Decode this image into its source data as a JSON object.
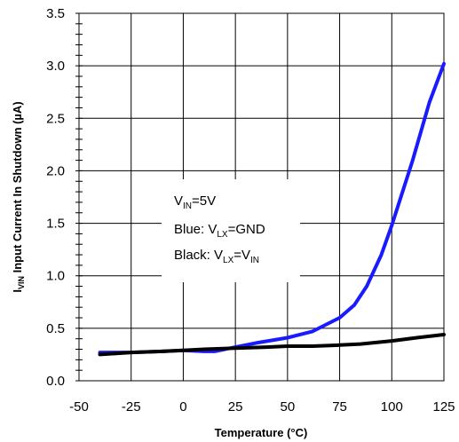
{
  "chart_data": {
    "type": "line",
    "xlabel": "Temperature (°C)",
    "ylabel": {
      "prefix": "I",
      "sub": "VIN",
      "rest": " Input Current In Shutdown (",
      "mu": "µ",
      "unit": "A)"
    },
    "xlim": [
      -50,
      125
    ],
    "ylim": [
      0,
      3.5
    ],
    "x_ticks": [
      -50,
      -25,
      0,
      25,
      50,
      75,
      100,
      125
    ],
    "x_tick_labels": [
      "-50",
      "-25",
      "0",
      "25",
      "50",
      "75",
      "100",
      "125"
    ],
    "y_ticks": [
      0,
      0.5,
      1.0,
      1.5,
      2.0,
      2.5,
      3.0,
      3.5
    ],
    "y_tick_labels": [
      "0.0",
      "0.5",
      "1.0",
      "1.5",
      "2.0",
      "2.5",
      "3.0",
      "3.5"
    ],
    "grid": true,
    "annotation": {
      "line1": {
        "main": "V",
        "sub": "IN",
        "rest": "=5V"
      },
      "line2": {
        "pre": "Blue: V",
        "sub": "LX",
        "rest": "=GND"
      },
      "line3": {
        "pre": "Black: V",
        "sub1": "LX",
        "mid": "=V",
        "sub2": "IN"
      }
    },
    "series": [
      {
        "color": "#1a1aff",
        "x": [
          -40,
          -25,
          -10,
          0,
          10,
          15,
          25,
          35,
          50,
          62,
          75,
          82,
          88,
          95,
          100,
          110,
          118,
          125
        ],
        "y": [
          0.27,
          0.27,
          0.28,
          0.29,
          0.28,
          0.28,
          0.32,
          0.36,
          0.41,
          0.47,
          0.6,
          0.72,
          0.9,
          1.2,
          1.48,
          2.1,
          2.65,
          3.02
        ]
      },
      {
        "color": "#000000",
        "x": [
          -40,
          -25,
          -10,
          0,
          10,
          25,
          40,
          50,
          62,
          75,
          85,
          100,
          112,
          125
        ],
        "y": [
          0.25,
          0.27,
          0.28,
          0.29,
          0.3,
          0.31,
          0.32,
          0.33,
          0.33,
          0.34,
          0.35,
          0.38,
          0.41,
          0.44
        ]
      }
    ]
  }
}
